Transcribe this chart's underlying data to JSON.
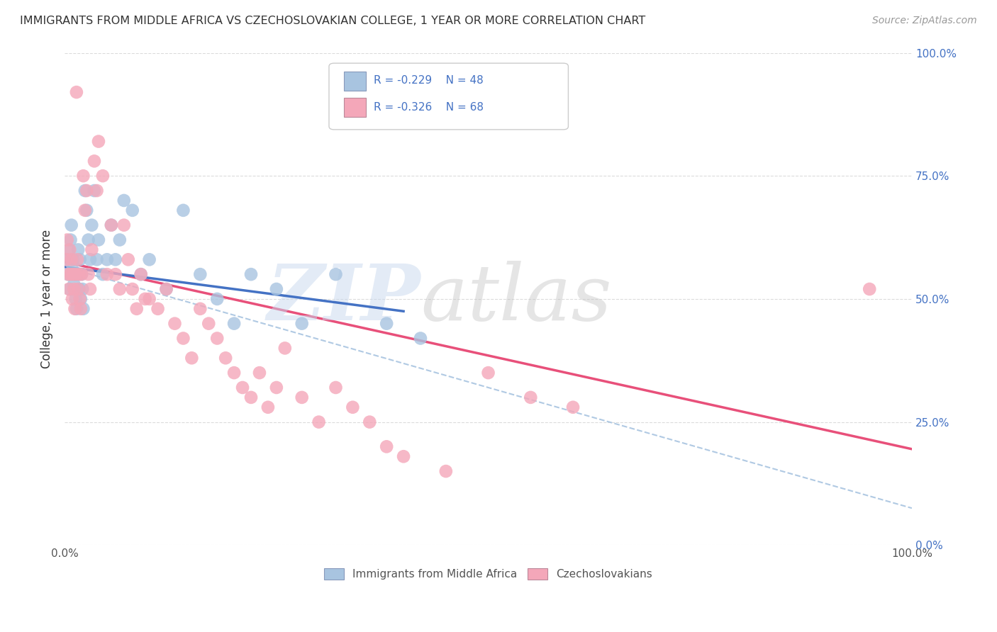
{
  "title": "IMMIGRANTS FROM MIDDLE AFRICA VS CZECHOSLOVAKIAN COLLEGE, 1 YEAR OR MORE CORRELATION CHART",
  "source": "Source: ZipAtlas.com",
  "ylabel": "College, 1 year or more",
  "xlim": [
    0,
    1
  ],
  "ylim": [
    0,
    1
  ],
  "legend1_R": "-0.229",
  "legend1_N": "48",
  "legend2_R": "-0.326",
  "legend2_N": "68",
  "blue_color": "#a8c4e0",
  "pink_color": "#f4a7b9",
  "blue_line_color": "#4472c4",
  "pink_line_color": "#e8507a",
  "dashed_line_color": "#a8c4e0",
  "blue_scatter_x": [
    0.003,
    0.004,
    0.005,
    0.006,
    0.007,
    0.008,
    0.009,
    0.01,
    0.011,
    0.012,
    0.013,
    0.014,
    0.015,
    0.016,
    0.017,
    0.018,
    0.019,
    0.02,
    0.021,
    0.022,
    0.024,
    0.026,
    0.028,
    0.03,
    0.032,
    0.035,
    0.038,
    0.04,
    0.045,
    0.05,
    0.055,
    0.06,
    0.065,
    0.07,
    0.08,
    0.09,
    0.1,
    0.12,
    0.14,
    0.16,
    0.18,
    0.2,
    0.22,
    0.25,
    0.28,
    0.32,
    0.38,
    0.42
  ],
  "blue_scatter_y": [
    0.58,
    0.55,
    0.6,
    0.52,
    0.62,
    0.65,
    0.57,
    0.58,
    0.53,
    0.55,
    0.5,
    0.48,
    0.55,
    0.6,
    0.52,
    0.58,
    0.5,
    0.55,
    0.52,
    0.48,
    0.72,
    0.68,
    0.62,
    0.58,
    0.65,
    0.72,
    0.58,
    0.62,
    0.55,
    0.58,
    0.65,
    0.58,
    0.62,
    0.7,
    0.68,
    0.55,
    0.58,
    0.52,
    0.68,
    0.55,
    0.5,
    0.45,
    0.55,
    0.52,
    0.45,
    0.55,
    0.45,
    0.42
  ],
  "pink_scatter_x": [
    0.002,
    0.003,
    0.004,
    0.005,
    0.006,
    0.007,
    0.008,
    0.009,
    0.01,
    0.011,
    0.012,
    0.013,
    0.014,
    0.015,
    0.016,
    0.017,
    0.018,
    0.019,
    0.02,
    0.022,
    0.024,
    0.026,
    0.028,
    0.03,
    0.032,
    0.035,
    0.038,
    0.04,
    0.045,
    0.05,
    0.055,
    0.06,
    0.065,
    0.07,
    0.075,
    0.08,
    0.085,
    0.09,
    0.095,
    0.1,
    0.11,
    0.12,
    0.13,
    0.14,
    0.15,
    0.16,
    0.17,
    0.18,
    0.19,
    0.2,
    0.21,
    0.22,
    0.23,
    0.24,
    0.25,
    0.26,
    0.28,
    0.3,
    0.32,
    0.34,
    0.36,
    0.38,
    0.4,
    0.45,
    0.5,
    0.55,
    0.6,
    0.95
  ],
  "pink_scatter_y": [
    0.58,
    0.62,
    0.55,
    0.52,
    0.6,
    0.55,
    0.58,
    0.5,
    0.55,
    0.52,
    0.48,
    0.55,
    0.92,
    0.58,
    0.52,
    0.55,
    0.5,
    0.48,
    0.55,
    0.75,
    0.68,
    0.72,
    0.55,
    0.52,
    0.6,
    0.78,
    0.72,
    0.82,
    0.75,
    0.55,
    0.65,
    0.55,
    0.52,
    0.65,
    0.58,
    0.52,
    0.48,
    0.55,
    0.5,
    0.5,
    0.48,
    0.52,
    0.45,
    0.42,
    0.38,
    0.48,
    0.45,
    0.42,
    0.38,
    0.35,
    0.32,
    0.3,
    0.35,
    0.28,
    0.32,
    0.4,
    0.3,
    0.25,
    0.32,
    0.28,
    0.25,
    0.2,
    0.18,
    0.15,
    0.35,
    0.3,
    0.28,
    0.52
  ],
  "blue_line_x0": 0.0,
  "blue_line_x1": 0.4,
  "blue_line_y0": 0.565,
  "blue_line_y1": 0.475,
  "pink_line_x0": 0.0,
  "pink_line_x1": 1.0,
  "pink_line_y0": 0.575,
  "pink_line_y1": 0.195,
  "dashed_line_x0": 0.0,
  "dashed_line_x1": 1.0,
  "dashed_line_y0": 0.565,
  "dashed_line_y1": 0.075,
  "background_color": "#ffffff",
  "grid_color": "#cccccc",
  "title_color": "#333333",
  "source_color": "#999999",
  "legend_text_color": "#4472c4",
  "axis_label_color": "#4472c4",
  "bottom_legend_label_color": "#555555"
}
